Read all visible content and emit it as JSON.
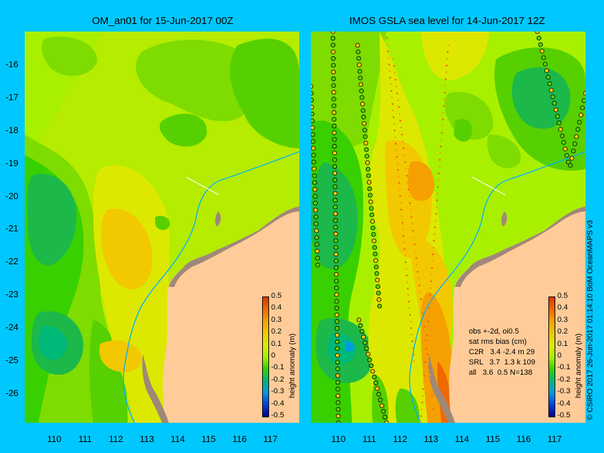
{
  "left_panel": {
    "title": "OM_an01 for 15-Jun-2017 00Z"
  },
  "right_panel": {
    "title": "IMOS GSLA sea level  for 14-Jun-2017 12Z"
  },
  "y_ticks": [
    "-16",
    "-17",
    "-18",
    "-19",
    "-20",
    "-21",
    "-22",
    "-23",
    "-24",
    "-25",
    "-26"
  ],
  "left_x_ticks": [
    "110",
    "111",
    "112",
    "113",
    "114",
    "115",
    "116",
    "117"
  ],
  "right_x_ticks": [
    "110",
    "111",
    "112",
    "113",
    "114",
    "115",
    "116",
    "117"
  ],
  "colorbar": {
    "label": "height anomaly (m)",
    "ticks": [
      "0.5",
      "0.4",
      "0.3",
      "0.2",
      "0.1",
      "0",
      "-0.1",
      "-0.2",
      "-0.3",
      "-0.4",
      "-0.5"
    ],
    "colors": [
      "#d73a00",
      "#f06800",
      "#f5a000",
      "#f2c800",
      "#dde800",
      "#a8f000",
      "#38d000",
      "#00b878",
      "#009be0",
      "#0040e0",
      "#000090"
    ]
  },
  "stats": {
    "line1": "obs +-2d, oi0.5",
    "line2": "sat rms bias (cm)",
    "line3": "C2R   3.4 -2.4 m 29",
    "line4": "SRL   3.7  1.3 k 109",
    "line5": "all   3.6  0.5 N=138"
  },
  "credit": "© CSIRO 2017   26-Jun-2017 01:14:10 BoM OceanMAPS v3",
  "colors": {
    "background": "#00c8ff",
    "land": "#ffcc99",
    "coast": "#a08878",
    "isobath": "#00b0ff"
  }
}
